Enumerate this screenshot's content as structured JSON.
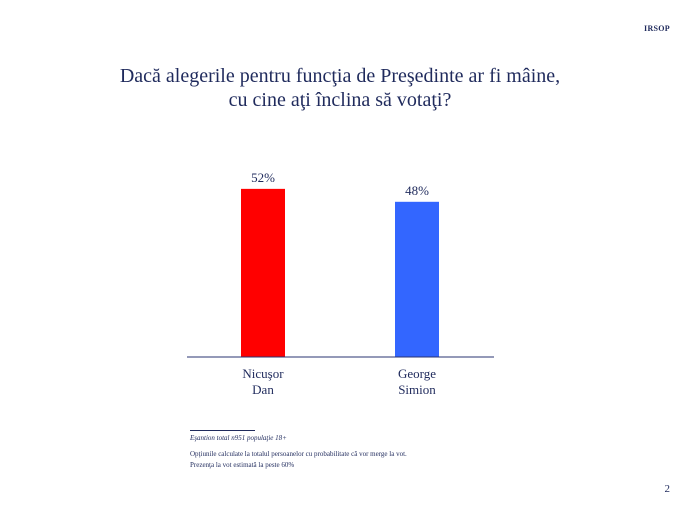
{
  "header": {
    "brand": "IRSOP"
  },
  "title": {
    "line1": "Dacă alegerile pentru funcţia de Preşedinte ar fi mâine,",
    "line2": "cu cine aţi înclina să votaţi?"
  },
  "chart_data": {
    "type": "bar",
    "categories": [
      [
        "Nicuşor",
        "Dan"
      ],
      [
        "George",
        "Simion"
      ]
    ],
    "values": [
      52,
      48
    ],
    "value_labels": [
      "52%",
      "48%"
    ],
    "colors": [
      "#ff0000",
      "#3366ff"
    ],
    "ylim": [
      0,
      60
    ],
    "grid": false,
    "legend": "none",
    "xlabel": "",
    "ylabel": ""
  },
  "notes": {
    "sample": "Eşantion total n951 populaţie 18+",
    "line1": "Opţiunile calculate la totalul persoanelor cu probabilitate că vor merge la vot.",
    "line2": "Prezenţa la vot estimată la peste 60%"
  },
  "footer": {
    "page_number": "2"
  },
  "colors": {
    "text": "#1f2a5c",
    "axis": "#2a3370"
  }
}
